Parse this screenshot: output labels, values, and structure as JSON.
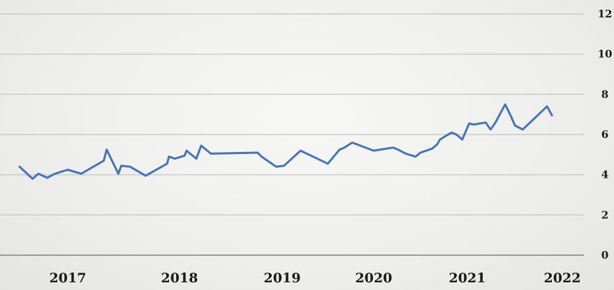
{
  "chart_data": {
    "type": "line",
    "title": "",
    "xlabel": "",
    "ylabel": "",
    "x_ticks": [
      "2017",
      "2018",
      "2019",
      "2020",
      "2021",
      "2022"
    ],
    "y_ticks": [
      "0",
      "2",
      "4",
      "6",
      "8",
      "10",
      "12"
    ],
    "ylim": [
      0,
      12
    ],
    "xlim": [
      2016.6,
      2022.4
    ],
    "grid": "horizontal",
    "y_axis_side": "right",
    "colors": {
      "line": "#4673b5",
      "grid": "#c9c9c9",
      "axis": "#9a9a9a"
    },
    "series": [
      {
        "x": [
          2016.78,
          2016.92,
          2016.98,
          2017.07,
          2017.15,
          2017.28,
          2017.42,
          2017.65,
          2017.68,
          2017.8,
          2017.83,
          2017.92,
          2018.08,
          2018.3,
          2018.32,
          2018.38,
          2018.48,
          2018.5,
          2018.6,
          2018.65,
          2018.75,
          2019.23,
          2019.27,
          2019.42,
          2019.5,
          2019.67,
          2019.95,
          2020.07,
          2020.12,
          2020.2,
          2020.42,
          2020.62,
          2020.67,
          2020.75,
          2020.85,
          2020.9,
          2021.02,
          2021.07,
          2021.1,
          2021.15,
          2021.22,
          2021.27,
          2021.33,
          2021.4,
          2021.45,
          2021.57,
          2021.62,
          2021.67,
          2021.77,
          2021.83,
          2021.87,
          2021.95,
          2022.2,
          2022.25
        ],
        "values": [
          4.4,
          3.8,
          4.05,
          3.85,
          4.05,
          4.25,
          4.05,
          4.7,
          5.25,
          4.05,
          4.45,
          4.4,
          3.95,
          4.55,
          4.9,
          4.8,
          4.95,
          5.2,
          4.8,
          5.45,
          5.05,
          5.1,
          4.9,
          4.4,
          4.45,
          5.2,
          4.55,
          5.25,
          5.35,
          5.6,
          5.2,
          5.35,
          5.25,
          5.05,
          4.9,
          5.1,
          5.3,
          5.5,
          5.75,
          5.9,
          6.1,
          6.0,
          5.75,
          6.55,
          6.5,
          6.6,
          6.25,
          6.6,
          7.5,
          6.9,
          6.45,
          6.25,
          7.4,
          6.95
        ]
      }
    ]
  }
}
